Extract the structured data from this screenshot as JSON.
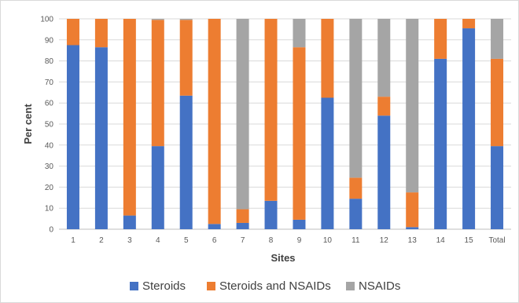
{
  "chart_data": {
    "type": "bar",
    "stacked": true,
    "xlabel": "Sites",
    "ylabel": "Per cent",
    "ylim": [
      0,
      100
    ],
    "yticks": [
      0,
      10,
      20,
      30,
      40,
      50,
      60,
      70,
      80,
      90,
      100
    ],
    "grid": true,
    "legend_position": "bottom",
    "categories": [
      "1",
      "2",
      "3",
      "4",
      "5",
      "6",
      "7",
      "8",
      "9",
      "10",
      "11",
      "12",
      "13",
      "14",
      "15",
      "Total"
    ],
    "series": [
      {
        "name": "Steroids",
        "color": "#4472c4",
        "values": [
          87.5,
          86.5,
          6.5,
          39.5,
          63.5,
          2.5,
          3,
          13.5,
          4.5,
          62.5,
          14.5,
          54,
          1,
          81,
          95.5,
          39.5
        ]
      },
      {
        "name": "Steroids and NSAIDs",
        "color": "#ed7d31",
        "values": [
          12.5,
          13.5,
          93.5,
          60,
          36,
          97.5,
          6.5,
          86.5,
          82,
          37.5,
          10,
          9,
          16.5,
          19,
          4.5,
          41.5
        ]
      },
      {
        "name": "NSAIDs",
        "color": "#a5a5a5",
        "values": [
          0,
          0,
          0,
          0.5,
          0.5,
          0,
          90.5,
          0,
          13.5,
          0,
          75.5,
          37,
          82.5,
          0,
          0,
          19
        ]
      }
    ]
  }
}
